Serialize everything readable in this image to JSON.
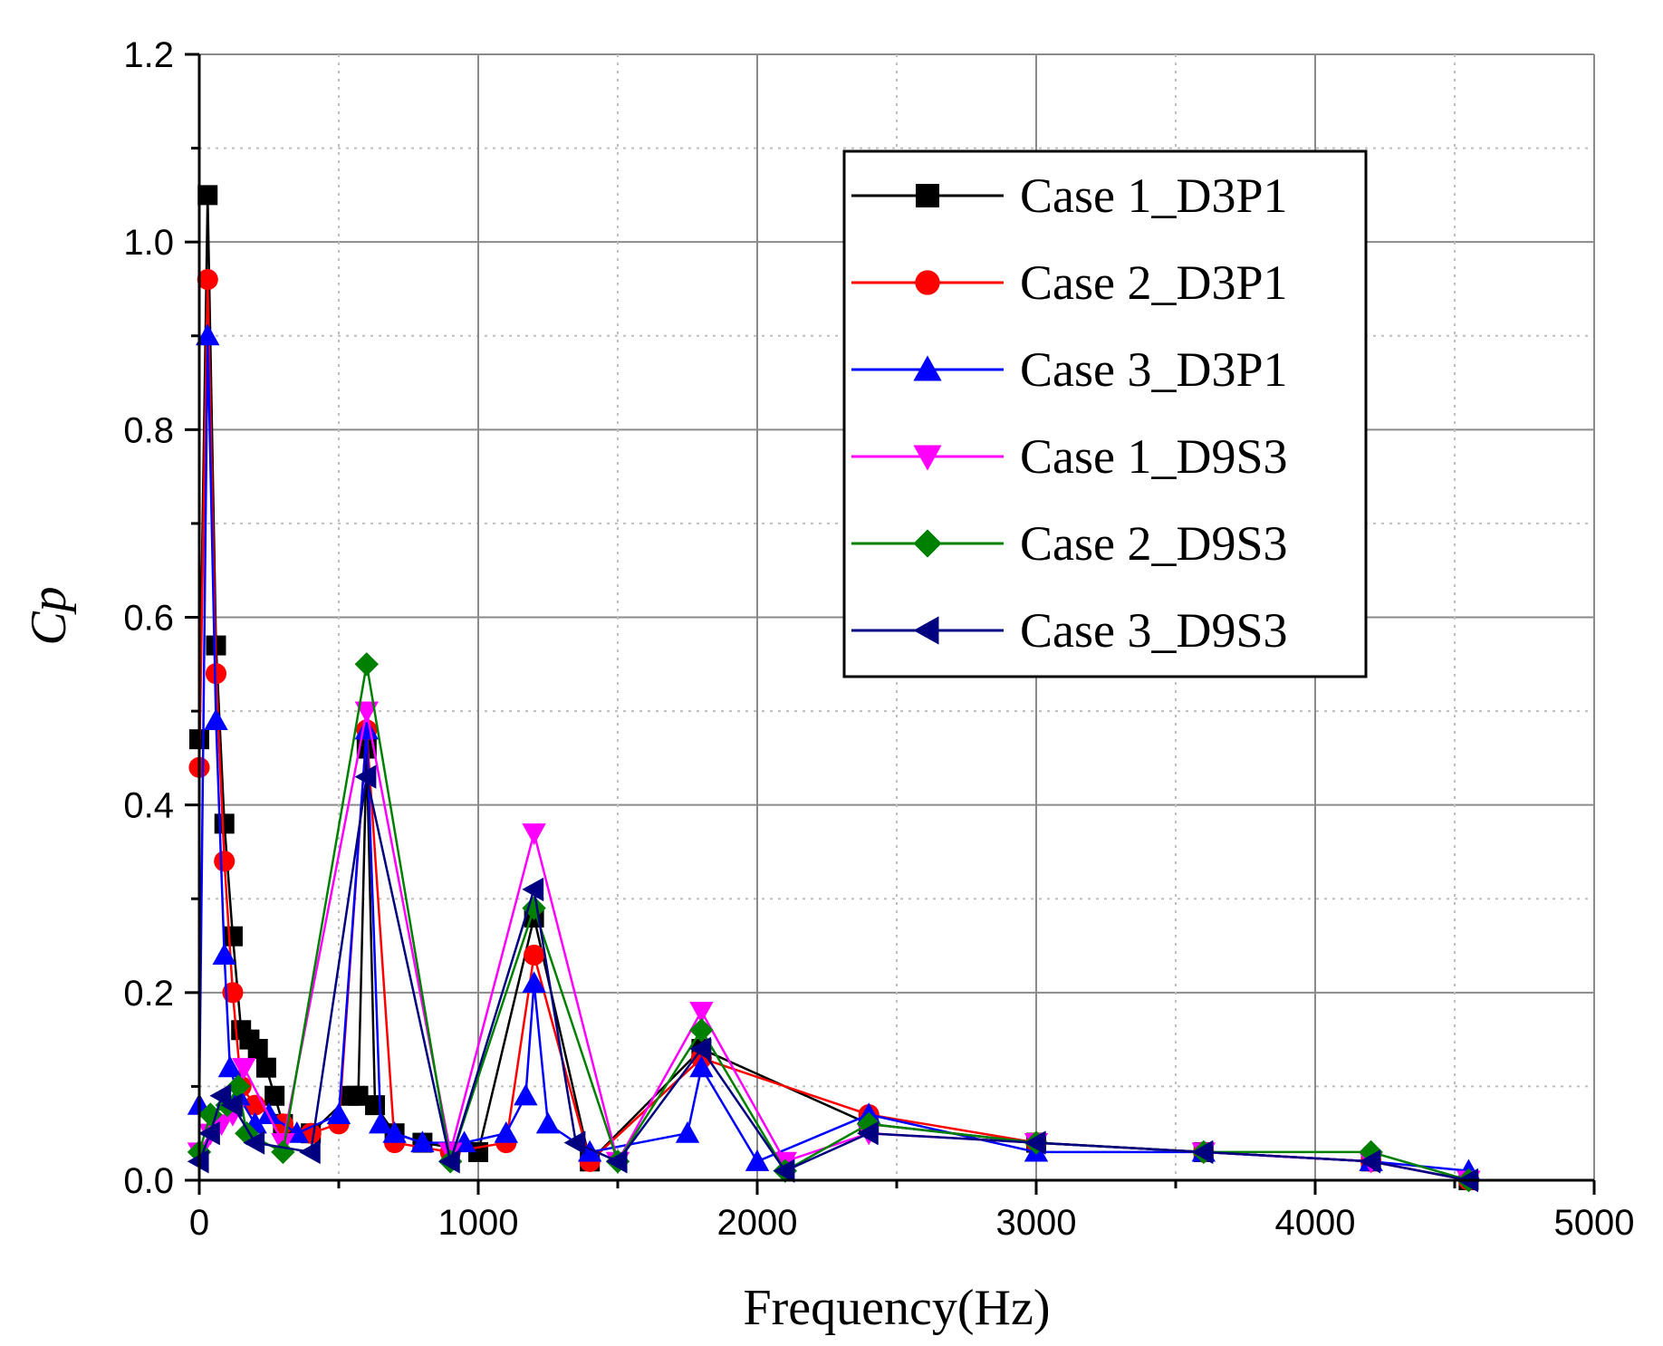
{
  "chart_data": {
    "type": "line",
    "title": "",
    "xlabel": "Frequency(Hz)",
    "ylabel": "Cp",
    "xlim": [
      0,
      5000
    ],
    "ylim": [
      0,
      1.2
    ],
    "x_ticks": [
      "0",
      "1000",
      "2000",
      "3000",
      "4000",
      "5000"
    ],
    "y_ticks": [
      "0.0",
      "0.2",
      "0.4",
      "0.6",
      "0.8",
      "1.0",
      "1.2"
    ],
    "grid": true,
    "legend_position": "top-right",
    "series": [
      {
        "name": "Case 1_D3P1",
        "color": "#000000",
        "marker": "square",
        "x": [
          0,
          30,
          60,
          90,
          120,
          150,
          180,
          210,
          240,
          270,
          300,
          400,
          540,
          570,
          600,
          630,
          700,
          800,
          1000,
          1200,
          1400,
          1800,
          2400,
          3000,
          3600,
          4200,
          4550
        ],
        "y": [
          0.47,
          1.05,
          0.57,
          0.38,
          0.26,
          0.16,
          0.15,
          0.14,
          0.12,
          0.09,
          0.06,
          0.05,
          0.09,
          0.09,
          0.46,
          0.08,
          0.05,
          0.04,
          0.03,
          0.28,
          0.02,
          0.14,
          0.06,
          0.04,
          0.03,
          0.02,
          0.0
        ]
      },
      {
        "name": "Case 2_D3P1",
        "color": "#ff0000",
        "marker": "circle",
        "x": [
          0,
          30,
          60,
          90,
          120,
          150,
          200,
          300,
          400,
          500,
          600,
          700,
          900,
          1100,
          1200,
          1400,
          1800,
          2400,
          3000,
          3600,
          4200,
          4550
        ],
        "y": [
          0.44,
          0.96,
          0.54,
          0.34,
          0.2,
          0.1,
          0.08,
          0.06,
          0.05,
          0.06,
          0.48,
          0.04,
          0.03,
          0.04,
          0.24,
          0.02,
          0.13,
          0.07,
          0.04,
          0.03,
          0.02,
          0.0
        ]
      },
      {
        "name": "Case 3_D3P1",
        "color": "#0000ff",
        "marker": "triangle-up",
        "x": [
          0,
          30,
          60,
          90,
          110,
          140,
          200,
          250,
          350,
          500,
          600,
          650,
          700,
          800,
          950,
          1100,
          1170,
          1200,
          1250,
          1400,
          1750,
          1800,
          2000,
          2400,
          3000,
          3600,
          4200,
          4550
        ],
        "y": [
          0.08,
          0.9,
          0.49,
          0.24,
          0.12,
          0.09,
          0.06,
          0.07,
          0.05,
          0.07,
          0.48,
          0.06,
          0.05,
          0.04,
          0.04,
          0.05,
          0.09,
          0.21,
          0.06,
          0.03,
          0.05,
          0.12,
          0.02,
          0.07,
          0.03,
          0.03,
          0.02,
          0.01
        ]
      },
      {
        "name": "Case 1_D9S3",
        "color": "#ff00ff",
        "marker": "triangle-down",
        "x": [
          0,
          40,
          80,
          120,
          160,
          300,
          600,
          900,
          1200,
          1500,
          1800,
          2100,
          2400,
          3000,
          3600,
          4200,
          4550
        ],
        "y": [
          0.03,
          0.05,
          0.06,
          0.07,
          0.12,
          0.04,
          0.5,
          0.03,
          0.37,
          0.02,
          0.18,
          0.02,
          0.05,
          0.04,
          0.03,
          0.02,
          0.0
        ]
      },
      {
        "name": "Case 2_D9S3",
        "color": "#008000",
        "marker": "diamond",
        "x": [
          0,
          40,
          100,
          140,
          170,
          300,
          600,
          900,
          1200,
          1500,
          1800,
          2100,
          2400,
          3000,
          3600,
          4200,
          4550
        ],
        "y": [
          0.03,
          0.07,
          0.08,
          0.1,
          0.05,
          0.03,
          0.55,
          0.02,
          0.29,
          0.02,
          0.16,
          0.01,
          0.06,
          0.04,
          0.03,
          0.03,
          0.0
        ]
      },
      {
        "name": "Case 3_D9S3",
        "color": "#000080",
        "marker": "triangle-left",
        "x": [
          0,
          40,
          80,
          120,
          200,
          400,
          600,
          900,
          1200,
          1350,
          1500,
          1800,
          2100,
          2400,
          3000,
          3600,
          4200,
          4550
        ],
        "y": [
          0.02,
          0.05,
          0.09,
          0.08,
          0.04,
          0.03,
          0.43,
          0.02,
          0.31,
          0.04,
          0.02,
          0.14,
          0.01,
          0.05,
          0.04,
          0.03,
          0.02,
          0.0
        ]
      }
    ]
  }
}
